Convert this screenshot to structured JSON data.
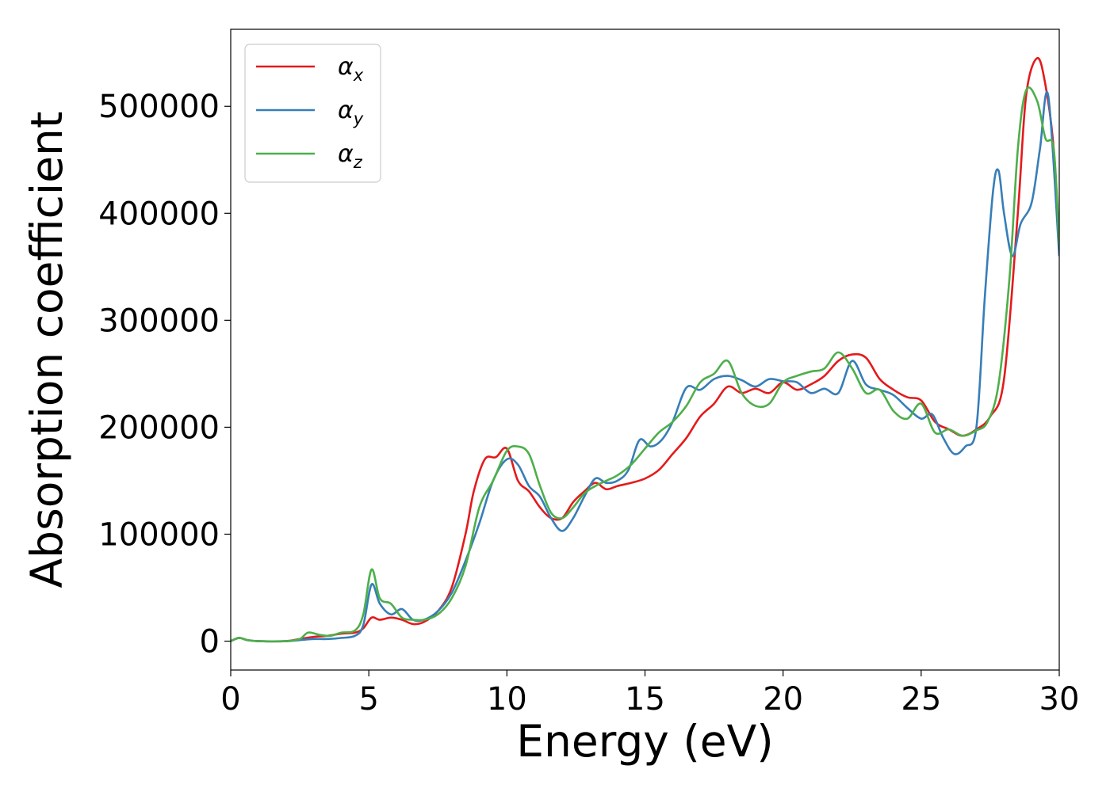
{
  "chart_data": {
    "type": "line",
    "xlabel": "Energy (eV)",
    "ylabel": "Absorption coefficient",
    "xlim": [
      0,
      30
    ],
    "ylim": [
      -27000,
      572000
    ],
    "xticks": [
      0,
      5,
      10,
      15,
      20,
      25,
      30
    ],
    "yticks": [
      0,
      100000,
      200000,
      300000,
      400000,
      500000
    ],
    "grid": false,
    "legend_position": "top-left",
    "series": [
      {
        "name": "α",
        "subscript": "x",
        "color": "#e41a1c",
        "x": [
          0,
          0.3,
          0.6,
          1,
          2,
          2.5,
          3,
          3.5,
          4,
          4.5,
          4.8,
          5.1,
          5.4,
          5.8,
          6.2,
          6.6,
          7,
          7.5,
          8,
          8.5,
          8.8,
          9.2,
          9.6,
          10,
          10.4,
          10.8,
          11.2,
          11.6,
          12,
          12.4,
          12.8,
          13.2,
          13.6,
          14,
          14.5,
          15,
          15.5,
          16,
          16.5,
          17,
          17.5,
          18,
          18.5,
          19,
          19.5,
          20,
          20.5,
          21,
          21.5,
          22,
          22.5,
          23,
          23.5,
          24,
          24.5,
          25,
          25.5,
          26,
          26.5,
          27,
          27.5,
          28,
          28.5,
          28.8,
          29.2,
          29.5,
          29.8,
          30
        ],
        "values": [
          0,
          3000,
          1000,
          0,
          0,
          2000,
          4000,
          5000,
          7000,
          8000,
          12000,
          22000,
          20000,
          22000,
          20000,
          16000,
          18000,
          28000,
          50000,
          100000,
          140000,
          170000,
          172000,
          180000,
          150000,
          140000,
          125000,
          115000,
          115000,
          130000,
          140000,
          148000,
          142000,
          145000,
          148000,
          152000,
          160000,
          175000,
          190000,
          210000,
          222000,
          238000,
          232000,
          236000,
          232000,
          242000,
          235000,
          240000,
          248000,
          262000,
          268000,
          265000,
          245000,
          235000,
          228000,
          225000,
          205000,
          198000,
          192000,
          198000,
          210000,
          245000,
          400000,
          510000,
          545000,
          520000,
          460000,
          370000
        ]
      },
      {
        "name": "α",
        "subscript": "y",
        "color": "#377eb8",
        "x": [
          0,
          0.3,
          0.6,
          1,
          2,
          2.5,
          3,
          3.5,
          4,
          4.5,
          4.8,
          5.1,
          5.4,
          5.8,
          6.2,
          6.6,
          7,
          7.5,
          8,
          8.5,
          9,
          9.5,
          10,
          10.4,
          10.8,
          11.2,
          11.6,
          12,
          12.4,
          12.8,
          13.2,
          13.6,
          14,
          14.4,
          14.8,
          15.2,
          15.6,
          16,
          16.5,
          17,
          17.5,
          18,
          18.5,
          19,
          19.5,
          20,
          20.5,
          21,
          21.5,
          22,
          22.5,
          23,
          23.5,
          24,
          24.5,
          25,
          25.4,
          25.8,
          26.2,
          26.6,
          27,
          27.3,
          27.6,
          27.8,
          28,
          28.3,
          28.6,
          29,
          29.3,
          29.6,
          30
        ],
        "values": [
          0,
          3000,
          1000,
          0,
          0,
          1000,
          2000,
          2000,
          3000,
          5000,
          15000,
          53000,
          35000,
          25000,
          30000,
          20000,
          20000,
          28000,
          45000,
          75000,
          110000,
          150000,
          170000,
          165000,
          145000,
          135000,
          115000,
          103000,
          115000,
          135000,
          152000,
          148000,
          150000,
          160000,
          188000,
          182000,
          188000,
          205000,
          237000,
          235000,
          245000,
          248000,
          244000,
          238000,
          245000,
          243000,
          242000,
          232000,
          236000,
          232000,
          262000,
          240000,
          235000,
          230000,
          218000,
          208000,
          212000,
          190000,
          175000,
          182000,
          200000,
          320000,
          420000,
          440000,
          400000,
          360000,
          390000,
          410000,
          460000,
          510000,
          360000
        ]
      },
      {
        "name": "α",
        "subscript": "z",
        "color": "#4daf4a",
        "x": [
          0,
          0.3,
          0.6,
          1,
          2,
          2.5,
          2.8,
          3.2,
          3.6,
          4,
          4.5,
          4.8,
          5.1,
          5.4,
          5.8,
          6.2,
          6.6,
          7,
          7.5,
          8,
          8.5,
          9,
          9.5,
          10,
          10.4,
          10.8,
          11.2,
          11.6,
          12,
          12.4,
          12.8,
          13.2,
          13.6,
          14,
          14.5,
          15,
          15.5,
          16,
          16.5,
          17,
          17.5,
          18,
          18.5,
          19,
          19.5,
          20,
          20.5,
          21,
          21.5,
          22,
          22.5,
          23,
          23.5,
          24,
          24.5,
          25,
          25.5,
          26,
          26.5,
          27,
          27.4,
          27.8,
          28.2,
          28.5,
          28.8,
          29.2,
          29.5,
          29.8,
          30
        ],
        "values": [
          0,
          3000,
          1000,
          0,
          0,
          2000,
          8000,
          6000,
          5000,
          8000,
          10000,
          25000,
          67000,
          40000,
          35000,
          22000,
          20000,
          20000,
          25000,
          40000,
          70000,
          125000,
          150000,
          178000,
          182000,
          175000,
          145000,
          120000,
          115000,
          125000,
          138000,
          145000,
          150000,
          155000,
          165000,
          180000,
          195000,
          205000,
          220000,
          242000,
          250000,
          262000,
          232000,
          220000,
          222000,
          242000,
          248000,
          252000,
          255000,
          270000,
          255000,
          232000,
          235000,
          215000,
          208000,
          222000,
          195000,
          198000,
          192000,
          197000,
          205000,
          240000,
          340000,
          460000,
          515000,
          505000,
          470000,
          460000,
          370000
        ]
      }
    ]
  }
}
